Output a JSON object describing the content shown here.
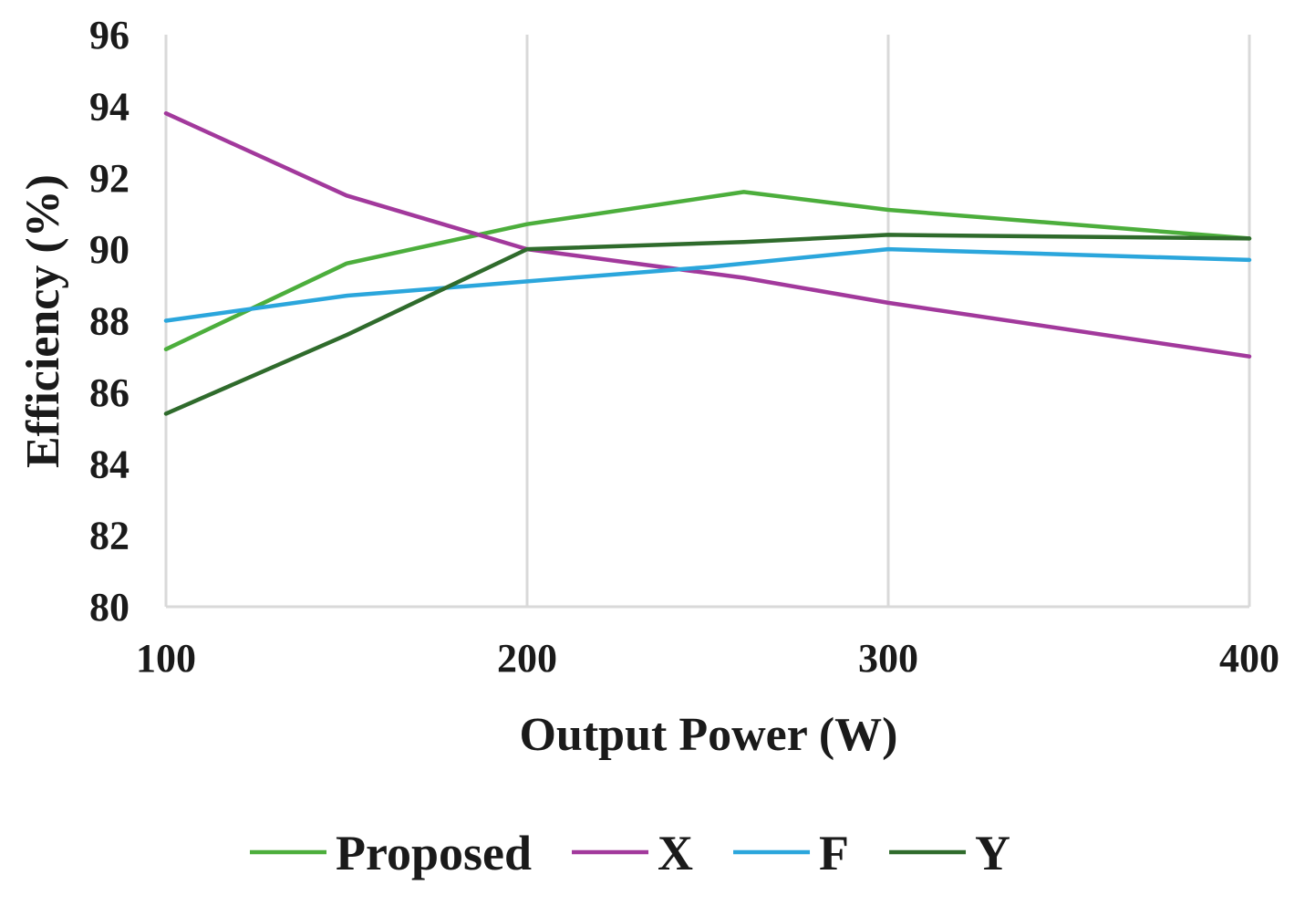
{
  "chart_data": {
    "type": "line",
    "title": "",
    "xlabel": "Output Power (W)",
    "ylabel": "Efficiency (%)",
    "xlim": [
      100,
      400
    ],
    "ylim": [
      80,
      96
    ],
    "x_ticks": [
      100,
      200,
      300,
      400
    ],
    "y_ticks": [
      80,
      82,
      84,
      86,
      88,
      90,
      92,
      94,
      96
    ],
    "grid": "vertical",
    "legend_position": "bottom",
    "series": [
      {
        "name": "Proposed",
        "color": "#4cae3c",
        "points": [
          [
            100,
            87.2
          ],
          [
            150,
            89.6
          ],
          [
            200,
            90.7
          ],
          [
            260,
            91.6
          ],
          [
            300,
            91.1
          ],
          [
            400,
            90.3
          ]
        ]
      },
      {
        "name": "X",
        "color": "#a2399c",
        "points": [
          [
            100,
            93.8
          ],
          [
            150,
            91.5
          ],
          [
            200,
            90.0
          ],
          [
            260,
            89.2
          ],
          [
            300,
            88.5
          ],
          [
            400,
            87.0
          ]
        ]
      },
      {
        "name": "F",
        "color": "#2ba6dc",
        "points": [
          [
            100,
            88.0
          ],
          [
            150,
            88.7
          ],
          [
            200,
            89.1
          ],
          [
            250,
            89.5
          ],
          [
            300,
            90.0
          ],
          [
            400,
            89.7
          ]
        ]
      },
      {
        "name": "Y",
        "color": "#2f6b2c",
        "points": [
          [
            100,
            85.4
          ],
          [
            150,
            87.6
          ],
          [
            200,
            90.0
          ],
          [
            260,
            90.2
          ],
          [
            300,
            90.4
          ],
          [
            400,
            90.3
          ]
        ]
      }
    ]
  }
}
